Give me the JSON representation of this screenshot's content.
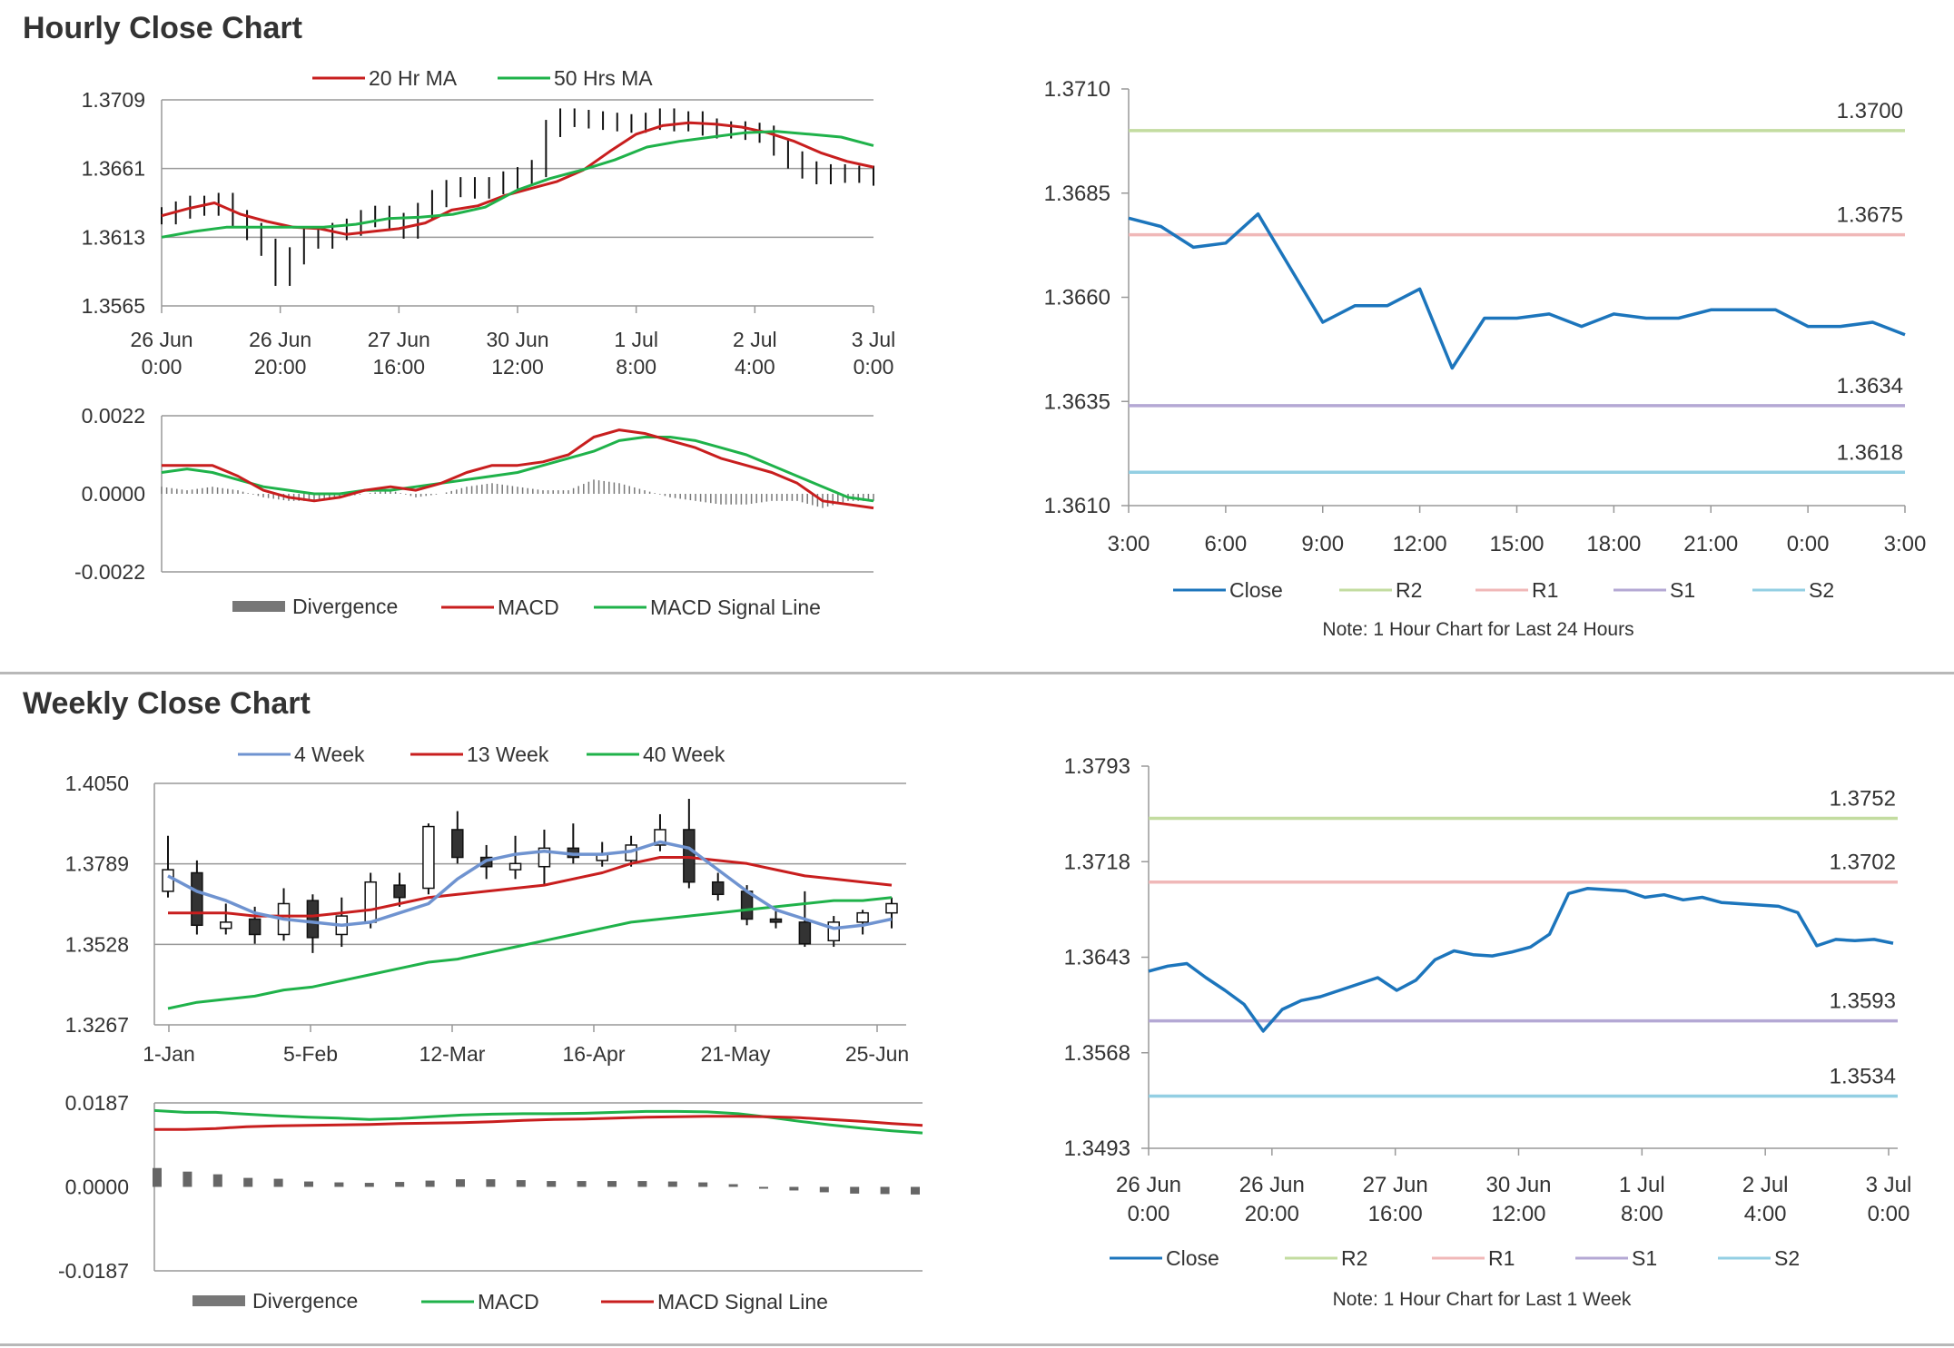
{
  "sections": {
    "hourly_title": "Hourly Close Chart",
    "weekly_title": "Weekly Close Chart"
  },
  "colors": {
    "ma_red": "#c81e1e",
    "ma_green": "#1fb24a",
    "close_blue": "#1c75bc",
    "ma_blue": "#6f93d0",
    "r2": "#c3dca0",
    "r1": "#f0b8b8",
    "s1": "#b4a8d4",
    "s2": "#93cfe3",
    "grid": "#999999",
    "divergence": "#777777"
  },
  "chart_data": [
    {
      "id": "hourly-price",
      "type": "line",
      "ylim": [
        1.3565,
        1.3709
      ],
      "yticks": [
        "1.3709",
        "1.3661",
        "1.3613",
        "1.3565"
      ],
      "xticks": [
        {
          "l1": "26 Jun",
          "l2": "0:00"
        },
        {
          "l1": "26 Jun",
          "l2": "20:00"
        },
        {
          "l1": "27 Jun",
          "l2": "16:00"
        },
        {
          "l1": "30 Jun",
          "l2": "12:00"
        },
        {
          "l1": "1 Jul",
          "l2": "8:00"
        },
        {
          "l1": "2 Jul",
          "l2": "4:00"
        },
        {
          "l1": "3 Jul",
          "l2": "0:00"
        }
      ],
      "legend": [
        "20 Hr MA",
        "50 Hrs MA"
      ],
      "ohlc_close": [
        1.3628,
        1.3632,
        1.3636,
        1.3634,
        1.3638,
        1.3626,
        1.3617,
        1.3606,
        1.3585,
        1.36,
        1.3613,
        1.3611,
        1.3617,
        1.362,
        1.3626,
        1.3629,
        1.3624,
        1.3618,
        1.3631,
        1.364,
        1.3647,
        1.3649,
        1.3646,
        1.3649,
        1.3653,
        1.3656,
        1.3661,
        1.3689,
        1.3697,
        1.3696,
        1.3695,
        1.3694,
        1.3693,
        1.3692,
        1.3694,
        1.3697,
        1.3693,
        1.3695,
        1.369,
        1.3688,
        1.3688,
        1.3687,
        1.3685,
        1.3676,
        1.3667,
        1.366,
        1.3656,
        1.3658,
        1.3657,
        1.3657,
        1.3655
      ],
      "ma20": [
        1.3628,
        1.3633,
        1.3637,
        1.3629,
        1.3624,
        1.362,
        1.3619,
        1.3615,
        1.3617,
        1.3619,
        1.3623,
        1.3632,
        1.3635,
        1.3642,
        1.3647,
        1.3652,
        1.366,
        1.3673,
        1.3685,
        1.3691,
        1.3693,
        1.3692,
        1.369,
        1.3686,
        1.368,
        1.3672,
        1.3666,
        1.3662
      ],
      "ma50": [
        1.3613,
        1.3617,
        1.362,
        1.362,
        1.362,
        1.362,
        1.3622,
        1.3626,
        1.3627,
        1.3629,
        1.3634,
        1.3646,
        1.3654,
        1.366,
        1.3667,
        1.3676,
        1.368,
        1.3683,
        1.3686,
        1.3687,
        1.3685,
        1.3683,
        1.3677
      ]
    },
    {
      "id": "hourly-macd",
      "type": "line",
      "ylim": [
        -0.0022,
        0.0022
      ],
      "yticks": [
        "0.0022",
        "0.0000",
        "-0.0022"
      ],
      "legend": [
        "Divergence",
        "MACD",
        "MACD Signal Line"
      ],
      "macd": [
        0.0008,
        0.0008,
        0.0008,
        0.0005,
        0.0001,
        -0.0001,
        -0.0002,
        -0.0001,
        0.0001,
        0.0002,
        0.0001,
        0.0003,
        0.0006,
        0.0008,
        0.0008,
        0.0009,
        0.0011,
        0.0016,
        0.0018,
        0.0017,
        0.0015,
        0.0013,
        0.001,
        0.0008,
        0.0006,
        0.0003,
        -0.0002,
        -0.0003,
        -0.0004
      ],
      "signal": [
        0.0006,
        0.0007,
        0.0006,
        0.0004,
        0.0002,
        0.0001,
        0.0,
        0.0,
        0.0001,
        0.0001,
        0.0002,
        0.0003,
        0.0004,
        0.0005,
        0.0006,
        0.0008,
        0.001,
        0.0012,
        0.0015,
        0.0016,
        0.0016,
        0.0015,
        0.0013,
        0.0011,
        0.0008,
        0.0005,
        0.0002,
        -0.0001,
        -0.0002
      ]
    },
    {
      "id": "hourly-24h",
      "type": "line",
      "ylim": [
        1.361,
        1.371
      ],
      "yticks": [
        "1.3710",
        "1.3685",
        "1.3660",
        "1.3635",
        "1.3610"
      ],
      "xticks": [
        "3:00",
        "6:00",
        "9:00",
        "12:00",
        "15:00",
        "18:00",
        "21:00",
        "0:00",
        "3:00"
      ],
      "close": [
        1.3679,
        1.3677,
        1.3672,
        1.3673,
        1.368,
        1.3667,
        1.3654,
        1.3658,
        1.3658,
        1.3662,
        1.3643,
        1.3655,
        1.3655,
        1.3656,
        1.3653,
        1.3656,
        1.3655,
        1.3655,
        1.3657,
        1.3657,
        1.3657,
        1.3653,
        1.3653,
        1.3654,
        1.3651
      ],
      "levels": [
        {
          "name": "R2",
          "value": 1.37,
          "label": "1.3700"
        },
        {
          "name": "R1",
          "value": 1.3675,
          "label": "1.3675"
        },
        {
          "name": "S1",
          "value": 1.3634,
          "label": "1.3634"
        },
        {
          "name": "S2",
          "value": 1.3618,
          "label": "1.3618"
        }
      ],
      "legend": [
        "Close",
        "R2",
        "R1",
        "S1",
        "S2"
      ],
      "note": "Note: 1 Hour Chart for Last 24 Hours"
    },
    {
      "id": "weekly-price",
      "type": "line",
      "ylim": [
        1.3267,
        1.405
      ],
      "yticks": [
        "1.4050",
        "1.3789",
        "1.3528",
        "1.3267"
      ],
      "xticks": [
        "1-Jan",
        "5-Feb",
        "12-Mar",
        "16-Apr",
        "21-May",
        "25-Jun"
      ],
      "legend": [
        "4 Week",
        "13 Week",
        "40 Week"
      ],
      "candles": [
        {
          "o": 1.37,
          "c": 1.377,
          "h": 1.388,
          "l": 1.368
        },
        {
          "o": 1.376,
          "c": 1.359,
          "h": 1.38,
          "l": 1.356
        },
        {
          "o": 1.358,
          "c": 1.36,
          "h": 1.366,
          "l": 1.356
        },
        {
          "o": 1.361,
          "c": 1.356,
          "h": 1.365,
          "l": 1.353
        },
        {
          "o": 1.356,
          "c": 1.366,
          "h": 1.371,
          "l": 1.354
        },
        {
          "o": 1.367,
          "c": 1.355,
          "h": 1.369,
          "l": 1.35
        },
        {
          "o": 1.356,
          "c": 1.362,
          "h": 1.368,
          "l": 1.352
        },
        {
          "o": 1.36,
          "c": 1.373,
          "h": 1.376,
          "l": 1.358
        },
        {
          "o": 1.372,
          "c": 1.368,
          "h": 1.376,
          "l": 1.365
        },
        {
          "o": 1.371,
          "c": 1.391,
          "h": 1.392,
          "l": 1.369
        },
        {
          "o": 1.39,
          "c": 1.381,
          "h": 1.396,
          "l": 1.379
        },
        {
          "o": 1.381,
          "c": 1.378,
          "h": 1.385,
          "l": 1.374
        },
        {
          "o": 1.377,
          "c": 1.379,
          "h": 1.388,
          "l": 1.374
        },
        {
          "o": 1.378,
          "c": 1.384,
          "h": 1.39,
          "l": 1.372
        },
        {
          "o": 1.384,
          "c": 1.381,
          "h": 1.392,
          "l": 1.379
        },
        {
          "o": 1.38,
          "c": 1.382,
          "h": 1.386,
          "l": 1.378
        },
        {
          "o": 1.38,
          "c": 1.385,
          "h": 1.388,
          "l": 1.378
        },
        {
          "o": 1.385,
          "c": 1.39,
          "h": 1.395,
          "l": 1.383
        },
        {
          "o": 1.39,
          "c": 1.373,
          "h": 1.4,
          "l": 1.371
        },
        {
          "o": 1.373,
          "c": 1.369,
          "h": 1.376,
          "l": 1.367
        },
        {
          "o": 1.37,
          "c": 1.361,
          "h": 1.372,
          "l": 1.359
        },
        {
          "o": 1.361,
          "c": 1.36,
          "h": 1.364,
          "l": 1.358
        },
        {
          "o": 1.36,
          "c": 1.353,
          "h": 1.37,
          "l": 1.352
        },
        {
          "o": 1.354,
          "c": 1.36,
          "h": 1.362,
          "l": 1.352
        },
        {
          "o": 1.36,
          "c": 1.363,
          "h": 1.364,
          "l": 1.356
        },
        {
          "o": 1.363,
          "c": 1.366,
          "h": 1.368,
          "l": 1.358
        }
      ],
      "ma4": [
        1.375,
        1.37,
        1.367,
        1.363,
        1.361,
        1.36,
        1.359,
        1.36,
        1.363,
        1.366,
        1.374,
        1.38,
        1.382,
        1.383,
        1.382,
        1.382,
        1.383,
        1.386,
        1.384,
        1.377,
        1.37,
        1.364,
        1.361,
        1.358,
        1.359,
        1.361
      ],
      "ma13": [
        1.363,
        1.363,
        1.363,
        1.362,
        1.362,
        1.362,
        1.363,
        1.364,
        1.366,
        1.368,
        1.369,
        1.37,
        1.371,
        1.372,
        1.374,
        1.376,
        1.379,
        1.381,
        1.381,
        1.38,
        1.379,
        1.377,
        1.375,
        1.374,
        1.373,
        1.372
      ],
      "ma40": [
        1.332,
        1.334,
        1.335,
        1.336,
        1.338,
        1.339,
        1.341,
        1.343,
        1.345,
        1.347,
        1.348,
        1.35,
        1.352,
        1.354,
        1.356,
        1.358,
        1.36,
        1.361,
        1.362,
        1.363,
        1.364,
        1.365,
        1.366,
        1.367,
        1.367,
        1.368
      ]
    },
    {
      "id": "weekly-macd",
      "type": "line",
      "ylim": [
        -0.0187,
        0.0187
      ],
      "yticks": [
        "0.0187",
        "0.0000",
        "-0.0187"
      ],
      "legend": [
        "Divergence",
        "MACD",
        "MACD Signal Line"
      ],
      "macd": [
        0.017,
        0.0166,
        0.0166,
        0.0162,
        0.0158,
        0.0155,
        0.0153,
        0.015,
        0.0152,
        0.0156,
        0.016,
        0.0162,
        0.0163,
        0.0163,
        0.0164,
        0.0166,
        0.0168,
        0.0168,
        0.0167,
        0.0163,
        0.0155,
        0.0146,
        0.0138,
        0.0131,
        0.0125,
        0.012
      ],
      "signal": [
        0.0128,
        0.0128,
        0.013,
        0.0134,
        0.0136,
        0.0137,
        0.0138,
        0.0139,
        0.0141,
        0.0142,
        0.0143,
        0.0145,
        0.0148,
        0.015,
        0.0151,
        0.0153,
        0.0155,
        0.0156,
        0.0157,
        0.0157,
        0.0156,
        0.0154,
        0.015,
        0.0146,
        0.0141,
        0.0137
      ],
      "divergence": [
        0.0042,
        0.0034,
        0.0028,
        0.002,
        0.0018,
        0.0012,
        0.001,
        0.0009,
        0.0011,
        0.0014,
        0.0017,
        0.0017,
        0.0015,
        0.0013,
        0.0013,
        0.0013,
        0.0013,
        0.0012,
        0.001,
        0.0006,
        -0.0002,
        -0.0008,
        -0.0012,
        -0.0015,
        -0.0016,
        -0.0017
      ]
    },
    {
      "id": "weekly-1w",
      "type": "line",
      "ylim": [
        1.3493,
        1.3793
      ],
      "yticks": [
        "1.3793",
        "1.3718",
        "1.3643",
        "1.3568",
        "1.3493"
      ],
      "xticks": [
        {
          "l1": "26 Jun",
          "l2": "0:00"
        },
        {
          "l1": "26 Jun",
          "l2": "20:00"
        },
        {
          "l1": "27 Jun",
          "l2": "16:00"
        },
        {
          "l1": "30 Jun",
          "l2": "12:00"
        },
        {
          "l1": "1 Jul",
          "l2": "8:00"
        },
        {
          "l1": "2 Jul",
          "l2": "4:00"
        },
        {
          "l1": "3 Jul",
          "l2": "0:00"
        }
      ],
      "close": [
        1.3632,
        1.3636,
        1.3638,
        1.3627,
        1.3617,
        1.3606,
        1.3585,
        1.3602,
        1.3609,
        1.3612,
        1.3617,
        1.3622,
        1.3627,
        1.3617,
        1.3625,
        1.3641,
        1.3648,
        1.3645,
        1.3644,
        1.3647,
        1.3651,
        1.3661,
        1.3693,
        1.3697,
        1.3696,
        1.3695,
        1.369,
        1.3692,
        1.3688,
        1.369,
        1.3686,
        1.3685,
        1.3684,
        1.3683,
        1.3678,
        1.3652,
        1.3657,
        1.3656,
        1.3657,
        1.3654
      ],
      "levels": [
        {
          "name": "R2",
          "value": 1.3752,
          "label": "1.3752"
        },
        {
          "name": "R1",
          "value": 1.3702,
          "label": "1.3702"
        },
        {
          "name": "S1",
          "value": 1.3593,
          "label": "1.3593"
        },
        {
          "name": "S2",
          "value": 1.3534,
          "label": "1.3534"
        }
      ],
      "legend": [
        "Close",
        "R2",
        "R1",
        "S1",
        "S2"
      ],
      "note": "Note: 1 Hour Chart for Last 1 Week"
    }
  ]
}
